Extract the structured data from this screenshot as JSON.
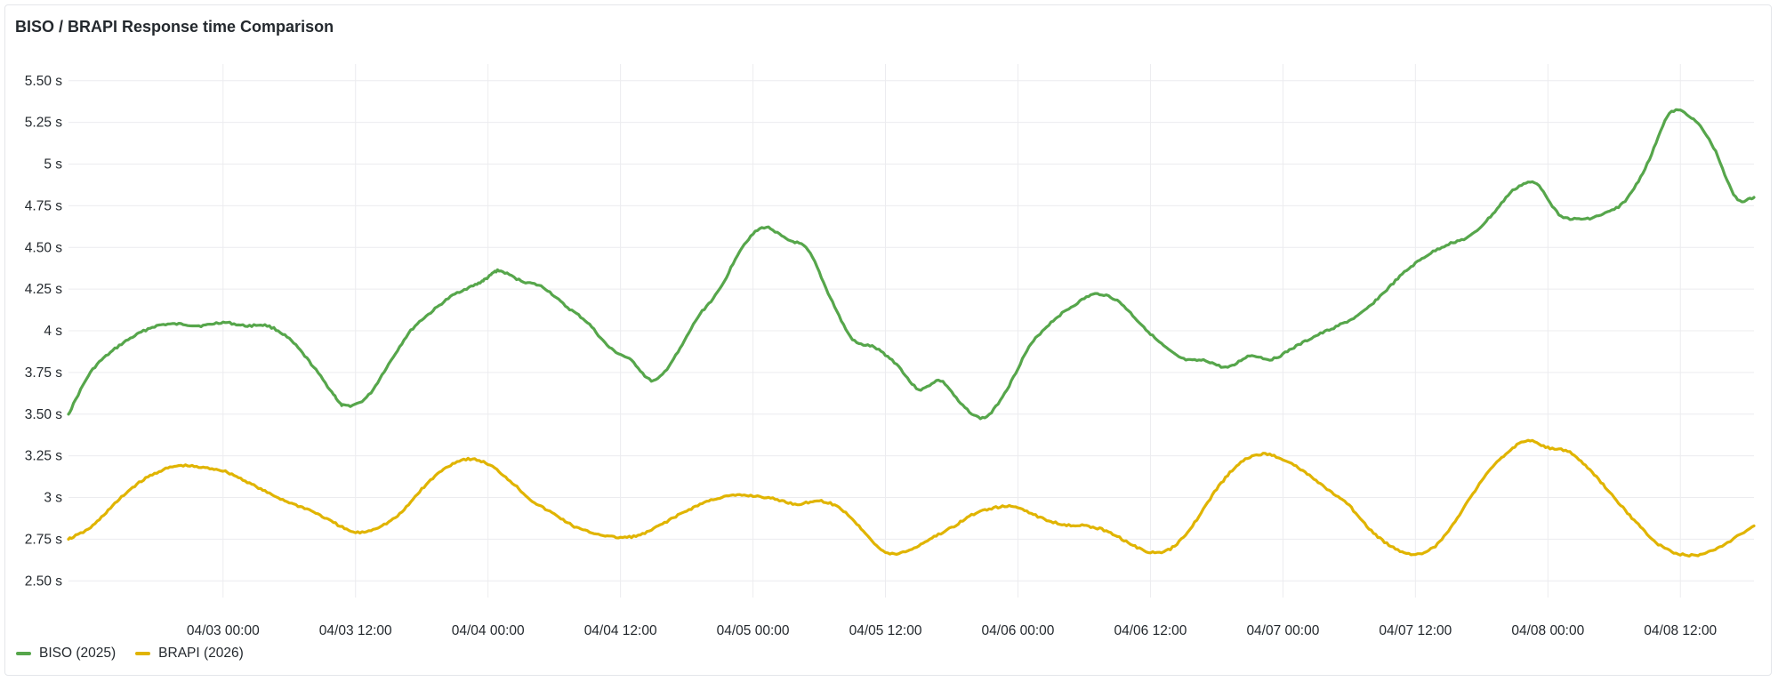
{
  "panel": {
    "title": "BISO / BRAPI Response time Comparison"
  },
  "chart_data": {
    "type": "line",
    "title": "BISO / BRAPI Response time Comparison",
    "xlabel": "",
    "ylabel": "",
    "x_unit": "datetime",
    "xlim": [
      "04/02 10:00",
      "04/08 18:40"
    ],
    "ylim": [
      2.4,
      5.6
    ],
    "y_ticks": [
      2.5,
      2.75,
      3,
      3.25,
      3.5,
      3.75,
      4,
      4.25,
      4.5,
      4.75,
      5,
      5.25,
      5.5
    ],
    "y_tick_labels": [
      "2.50 s",
      "2.75 s",
      "3 s",
      "3.25 s",
      "3.50 s",
      "3.75 s",
      "4 s",
      "4.25 s",
      "4.50 s",
      "4.75 s",
      "5 s",
      "5.25 s",
      "5.50 s"
    ],
    "x_ticks": [
      "04/03 00:00",
      "04/03 12:00",
      "04/04 00:00",
      "04/04 12:00",
      "04/05 00:00",
      "04/05 12:00",
      "04/06 00:00",
      "04/06 12:00",
      "04/07 00:00",
      "04/07 12:00",
      "04/08 00:00",
      "04/08 12:00"
    ],
    "grid": true,
    "legend_position": "bottom-left",
    "series": [
      {
        "name": "BISO (2025)",
        "color": "#56a64b",
        "points": [
          [
            "04/02 10:00",
            3.5
          ],
          [
            "04/02 12:00",
            3.75
          ],
          [
            "04/02 14:00",
            3.88
          ],
          [
            "04/02 16:00",
            3.97
          ],
          [
            "04/02 18:00",
            4.03
          ],
          [
            "04/02 20:00",
            4.04
          ],
          [
            "04/02 22:00",
            4.03
          ],
          [
            "04/03 00:00",
            4.05
          ],
          [
            "04/03 02:00",
            4.03
          ],
          [
            "04/03 04:00",
            4.03
          ],
          [
            "04/03 06:00",
            3.95
          ],
          [
            "04/03 08:00",
            3.8
          ],
          [
            "04/03 10:00",
            3.62
          ],
          [
            "04/03 11:00",
            3.55
          ],
          [
            "04/03 13:00",
            3.6
          ],
          [
            "04/03 15:00",
            3.8
          ],
          [
            "04/03 17:00",
            4.0
          ],
          [
            "04/03 19:00",
            4.12
          ],
          [
            "04/03 21:00",
            4.22
          ],
          [
            "04/03 23:00",
            4.28
          ],
          [
            "04/04 00:00",
            4.32
          ],
          [
            "04/04 01:00",
            4.36
          ],
          [
            "04/04 03:00",
            4.3
          ],
          [
            "04/04 05:00",
            4.26
          ],
          [
            "04/04 07:00",
            4.15
          ],
          [
            "04/04 09:00",
            4.05
          ],
          [
            "04/04 11:00",
            3.9
          ],
          [
            "04/04 13:00",
            3.82
          ],
          [
            "04/04 15:00",
            3.7
          ],
          [
            "04/04 17:00",
            3.85
          ],
          [
            "04/04 19:00",
            4.08
          ],
          [
            "04/04 21:00",
            4.25
          ],
          [
            "04/04 23:00",
            4.5
          ],
          [
            "04/05 01:00",
            4.62
          ],
          [
            "04/05 03:00",
            4.55
          ],
          [
            "04/05 05:00",
            4.48
          ],
          [
            "04/05 07:00",
            4.2
          ],
          [
            "04/05 09:00",
            3.95
          ],
          [
            "04/05 11:00",
            3.9
          ],
          [
            "04/05 13:00",
            3.8
          ],
          [
            "04/05 15:00",
            3.65
          ],
          [
            "04/05 17:00",
            3.7
          ],
          [
            "04/05 19:00",
            3.55
          ],
          [
            "04/05 21:00",
            3.48
          ],
          [
            "04/05 23:00",
            3.65
          ],
          [
            "04/06 01:00",
            3.9
          ],
          [
            "04/06 03:00",
            4.05
          ],
          [
            "04/06 05:00",
            4.15
          ],
          [
            "04/06 07:00",
            4.22
          ],
          [
            "04/06 09:00",
            4.18
          ],
          [
            "04/06 11:00",
            4.05
          ],
          [
            "04/06 13:00",
            3.92
          ],
          [
            "04/06 15:00",
            3.83
          ],
          [
            "04/06 17:00",
            3.82
          ],
          [
            "04/06 19:00",
            3.78
          ],
          [
            "04/06 21:00",
            3.85
          ],
          [
            "04/06 23:00",
            3.83
          ],
          [
            "04/07 01:00",
            3.9
          ],
          [
            "04/07 03:00",
            3.97
          ],
          [
            "04/07 05:00",
            4.03
          ],
          [
            "04/07 07:00",
            4.1
          ],
          [
            "04/07 09:00",
            4.22
          ],
          [
            "04/07 11:00",
            4.35
          ],
          [
            "04/07 13:00",
            4.45
          ],
          [
            "04/07 15:00",
            4.52
          ],
          [
            "04/07 17:00",
            4.57
          ],
          [
            "04/07 19:00",
            4.7
          ],
          [
            "04/07 21:00",
            4.85
          ],
          [
            "04/07 23:00",
            4.88
          ],
          [
            "04/08 01:00",
            4.7
          ],
          [
            "04/08 03:00",
            4.67
          ],
          [
            "04/08 05:00",
            4.7
          ],
          [
            "04/08 07:00",
            4.78
          ],
          [
            "04/08 09:00",
            5.0
          ],
          [
            "04/08 11:00",
            5.3
          ],
          [
            "04/08 13:00",
            5.28
          ],
          [
            "04/08 15:00",
            5.1
          ],
          [
            "04/08 17:00",
            4.8
          ],
          [
            "04/08 18:40",
            4.8
          ]
        ]
      },
      {
        "name": "BRAPI (2026)",
        "color": "#e0b400",
        "points": [
          [
            "04/02 10:00",
            2.75
          ],
          [
            "04/02 12:00",
            2.82
          ],
          [
            "04/02 14:00",
            2.95
          ],
          [
            "04/02 16:00",
            3.07
          ],
          [
            "04/02 18:00",
            3.15
          ],
          [
            "04/02 20:00",
            3.19
          ],
          [
            "04/02 22:00",
            3.18
          ],
          [
            "04/03 00:00",
            3.16
          ],
          [
            "04/03 02:00",
            3.1
          ],
          [
            "04/03 04:00",
            3.03
          ],
          [
            "04/03 06:00",
            2.97
          ],
          [
            "04/03 08:00",
            2.92
          ],
          [
            "04/03 10:00",
            2.85
          ],
          [
            "04/03 12:00",
            2.79
          ],
          [
            "04/03 14:00",
            2.82
          ],
          [
            "04/03 16:00",
            2.9
          ],
          [
            "04/03 18:00",
            3.05
          ],
          [
            "04/03 20:00",
            3.17
          ],
          [
            "04/03 22:00",
            3.23
          ],
          [
            "04/04 00:00",
            3.2
          ],
          [
            "04/04 02:00",
            3.1
          ],
          [
            "04/04 04:00",
            2.98
          ],
          [
            "04/04 06:00",
            2.9
          ],
          [
            "04/04 08:00",
            2.82
          ],
          [
            "04/04 10:00",
            2.78
          ],
          [
            "04/04 12:00",
            2.76
          ],
          [
            "04/04 14:00",
            2.78
          ],
          [
            "04/04 16:00",
            2.85
          ],
          [
            "04/04 18:00",
            2.92
          ],
          [
            "04/04 20:00",
            2.98
          ],
          [
            "04/04 22:00",
            3.01
          ],
          [
            "04/05 00:00",
            3.01
          ],
          [
            "04/05 02:00",
            2.99
          ],
          [
            "04/05 04:00",
            2.96
          ],
          [
            "04/05 06:00",
            2.98
          ],
          [
            "04/05 08:00",
            2.93
          ],
          [
            "04/05 10:00",
            2.8
          ],
          [
            "04/05 12:00",
            2.67
          ],
          [
            "04/05 14:00",
            2.68
          ],
          [
            "04/05 16:00",
            2.75
          ],
          [
            "04/05 18:00",
            2.82
          ],
          [
            "04/05 20:00",
            2.9
          ],
          [
            "04/05 22:00",
            2.94
          ],
          [
            "04/06 00:00",
            2.94
          ],
          [
            "04/06 02:00",
            2.88
          ],
          [
            "04/06 04:00",
            2.84
          ],
          [
            "04/06 06:00",
            2.83
          ],
          [
            "04/06 08:00",
            2.8
          ],
          [
            "04/06 10:00",
            2.73
          ],
          [
            "04/06 12:00",
            2.67
          ],
          [
            "04/06 14:00",
            2.7
          ],
          [
            "04/06 16:00",
            2.85
          ],
          [
            "04/06 18:00",
            3.05
          ],
          [
            "04/06 20:00",
            3.2
          ],
          [
            "04/06 22:00",
            3.26
          ],
          [
            "04/07 00:00",
            3.23
          ],
          [
            "04/07 02:00",
            3.15
          ],
          [
            "04/07 04:00",
            3.05
          ],
          [
            "04/07 06:00",
            2.95
          ],
          [
            "04/07 08:00",
            2.8
          ],
          [
            "04/07 10:00",
            2.7
          ],
          [
            "04/07 12:00",
            2.66
          ],
          [
            "04/07 14:00",
            2.72
          ],
          [
            "04/07 16:00",
            2.9
          ],
          [
            "04/07 18:00",
            3.1
          ],
          [
            "04/07 20:00",
            3.25
          ],
          [
            "04/07 22:00",
            3.34
          ],
          [
            "04/08 00:00",
            3.3
          ],
          [
            "04/08 02:00",
            3.27
          ],
          [
            "04/08 04:00",
            3.15
          ],
          [
            "04/08 06:00",
            3.0
          ],
          [
            "04/08 08:00",
            2.85
          ],
          [
            "04/08 10:00",
            2.72
          ],
          [
            "04/08 12:00",
            2.66
          ],
          [
            "04/08 14:00",
            2.66
          ],
          [
            "04/08 16:00",
            2.72
          ],
          [
            "04/08 18:40",
            2.83
          ]
        ]
      }
    ]
  }
}
